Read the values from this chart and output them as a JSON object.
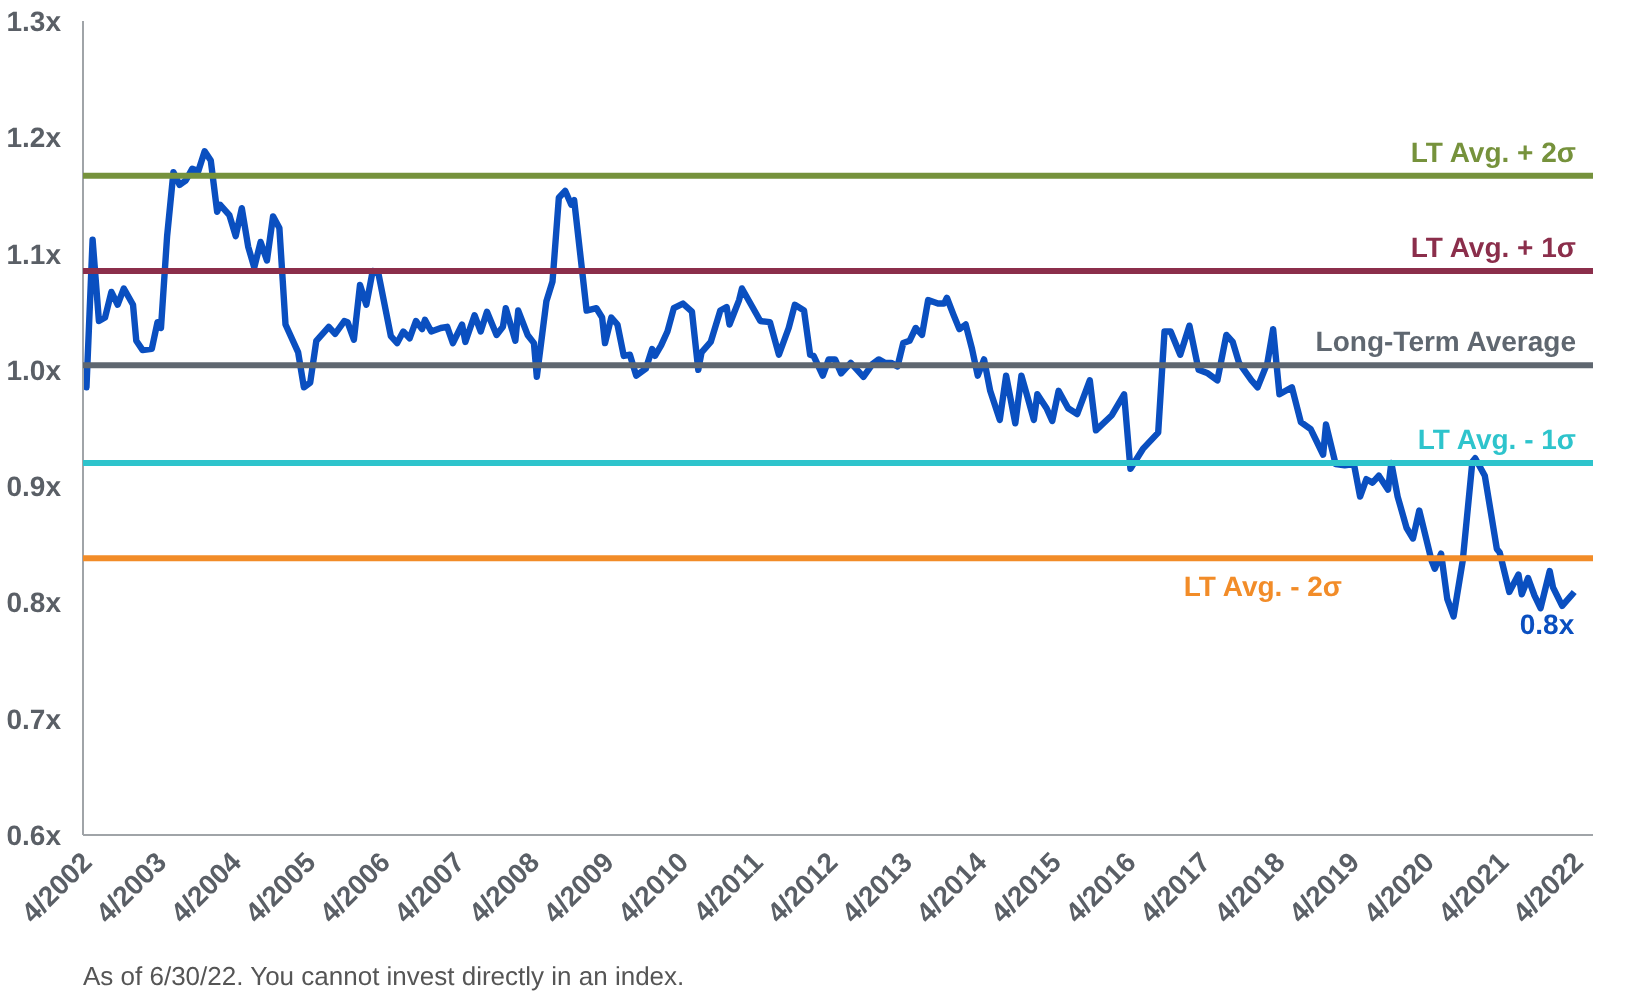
{
  "chart_data": {
    "type": "line",
    "x": [
      "2002-03-15",
      "2002-04-01",
      "2002-05-01",
      "2002-06-01",
      "2002-07-01",
      "2002-08-01",
      "2002-09-01",
      "2002-10-01",
      "2002-11-15",
      "2002-12-01",
      "2003-01-01",
      "2003-02-15",
      "2003-03-15",
      "2003-04-01",
      "2003-05-01",
      "2003-06-01",
      "2003-07-01",
      "2003-08-01",
      "2003-09-01",
      "2003-10-01",
      "2003-11-01",
      "2003-12-01",
      "2004-01-01",
      "2004-01-15",
      "2004-03-01",
      "2004-04-01",
      "2004-05-01",
      "2004-06-01",
      "2004-07-01",
      "2004-08-01",
      "2004-09-01",
      "2004-10-01",
      "2004-11-01",
      "2004-12-01",
      "2005-02-01",
      "2005-03-01",
      "2005-04-01",
      "2005-05-01",
      "2005-07-01",
      "2005-08-01",
      "2005-09-15",
      "2005-10-01",
      "2005-11-01",
      "2005-12-01",
      "2006-01-01",
      "2006-02-01",
      "2006-03-01",
      "2006-05-01",
      "2006-06-01",
      "2006-07-01",
      "2006-08-01",
      "2006-09-01",
      "2006-10-01",
      "2006-10-15",
      "2006-11-15",
      "2007-01-01",
      "2007-02-01",
      "2007-03-01",
      "2007-04-15",
      "2007-05-01",
      "2007-06-15",
      "2007-07-15",
      "2007-08-15",
      "2007-10-01",
      "2007-11-01",
      "2007-11-15",
      "2008-01-01",
      "2008-01-15",
      "2008-03-01",
      "2008-04-01",
      "2008-04-15",
      "2008-06-01",
      "2008-07-01",
      "2008-08-01",
      "2008-09-01",
      "2008-10-01",
      "2008-10-15",
      "2008-12-15",
      "2009-02-01",
      "2009-03-01",
      "2009-03-15",
      "2009-04-15",
      "2009-05-15",
      "2009-06-15",
      "2009-07-15",
      "2009-08-15",
      "2009-10-01",
      "2009-11-01",
      "2009-11-15",
      "2009-12-15",
      "2010-01-15",
      "2010-02-15",
      "2010-04-01",
      "2010-05-15",
      "2010-06-15",
      "2010-07-01",
      "2010-08-15",
      "2010-10-01",
      "2010-11-01",
      "2010-11-15",
      "2011-01-01",
      "2011-01-15",
      "2011-03-01",
      "2011-04-15",
      "2011-06-01",
      "2011-07-15",
      "2011-09-01",
      "2011-10-01",
      "2011-11-15",
      "2011-12-15",
      "2012-01-01",
      "2012-02-15",
      "2012-03-15",
      "2012-04-15",
      "2012-05-15",
      "2012-07-01",
      "2012-08-01",
      "2012-09-01",
      "2012-10-15",
      "2012-11-15",
      "2012-12-15",
      "2013-01-15",
      "2013-02-15",
      "2013-03-15",
      "2013-04-15",
      "2013-05-15",
      "2013-06-15",
      "2013-07-15",
      "2013-09-01",
      "2013-10-01",
      "2013-10-15",
      "2013-11-15",
      "2013-12-15",
      "2014-01-15",
      "2014-02-15",
      "2014-03-15",
      "2014-04-15",
      "2014-05-15",
      "2014-07-01",
      "2014-08-01",
      "2014-09-15",
      "2014-10-15",
      "2014-11-15",
      "2014-12-15",
      "2015-01-01",
      "2015-02-15",
      "2015-03-15",
      "2015-04-15",
      "2015-06-01",
      "2015-07-15",
      "2015-09-15",
      "2015-10-15",
      "2016-01-01",
      "2016-03-01",
      "2016-04-01",
      "2016-06-01",
      "2016-08-15",
      "2016-09-15",
      "2016-10-15",
      "2016-12-01",
      "2017-01-15",
      "2017-03-01",
      "2017-04-15",
      "2017-06-01",
      "2017-07-15",
      "2017-08-15",
      "2017-09-15",
      "2017-11-15",
      "2017-12-15",
      "2018-02-01",
      "2018-03-01",
      "2018-04-01",
      "2018-06-01",
      "2018-07-15",
      "2018-09-01",
      "2018-11-01",
      "2018-11-15",
      "2019-01-01",
      "2019-02-15",
      "2019-04-01",
      "2019-05-01",
      "2019-06-01",
      "2019-07-01",
      "2019-08-01",
      "2019-09-15",
      "2019-10-01",
      "2019-11-01",
      "2019-12-15",
      "2020-01-15",
      "2020-02-15",
      "2020-04-15",
      "2020-05-01",
      "2020-06-01",
      "2020-07-01",
      "2020-08-01",
      "2020-09-15",
      "2020-11-01",
      "2020-11-15",
      "2021-01-01",
      "2021-03-01",
      "2021-03-15",
      "2021-05-01",
      "2021-06-15",
      "2021-07-01",
      "2021-08-01",
      "2021-09-01",
      "2021-10-01",
      "2021-11-15",
      "2021-12-01",
      "2022-01-15",
      "2022-03-01",
      "2022-03-15"
    ],
    "series": [
      {
        "color": "#0a4fc0",
        "values": [
          1.003,
          0.985,
          1.112,
          1.042,
          1.045,
          1.067,
          1.056,
          1.07,
          1.056,
          1.025,
          1.017,
          1.018,
          1.041,
          1.036,
          1.115,
          1.17,
          1.159,
          1.163,
          1.173,
          1.171,
          1.188,
          1.18,
          1.136,
          1.142,
          1.133,
          1.115,
          1.139,
          1.106,
          1.088,
          1.11,
          1.094,
          1.132,
          1.122,
          1.039,
          1.015,
          0.985,
          0.989,
          1.025,
          1.037,
          1.031,
          1.042,
          1.041,
          1.026,
          1.073,
          1.056,
          1.085,
          1.083,
          1.029,
          1.023,
          1.033,
          1.027,
          1.042,
          1.035,
          1.043,
          1.033,
          1.036,
          1.037,
          1.023,
          1.039,
          1.024,
          1.047,
          1.033,
          1.05,
          1.03,
          1.037,
          1.053,
          1.025,
          1.051,
          1.03,
          1.023,
          0.994,
          1.059,
          1.076,
          1.148,
          1.154,
          1.142,
          1.146,
          1.051,
          1.053,
          1.045,
          1.023,
          1.045,
          1.039,
          1.012,
          1.013,
          0.995,
          1.001,
          1.018,
          1.012,
          1.021,
          1.033,
          1.053,
          1.057,
          1.05,
          1.0,
          1.015,
          1.024,
          1.051,
          1.054,
          1.039,
          1.06,
          1.07,
          1.056,
          1.042,
          1.041,
          1.013,
          1.036,
          1.056,
          1.051,
          1.013,
          1.012,
          0.995,
          1.009,
          1.009,
          0.997,
          1.006,
          1.0,
          0.994,
          1.005,
          1.009,
          1.006,
          1.006,
          1.003,
          1.023,
          1.025,
          1.036,
          1.03,
          1.06,
          1.057,
          1.057,
          1.062,
          1.048,
          1.035,
          1.039,
          1.018,
          0.995,
          1.009,
          0.982,
          0.957,
          0.995,
          0.954,
          0.995,
          0.976,
          0.957,
          0.979,
          0.967,
          0.956,
          0.982,
          0.967,
          0.962,
          0.991,
          0.948,
          0.961,
          0.979,
          0.915,
          0.932,
          0.946,
          1.033,
          1.033,
          1.013,
          1.038,
          1.0,
          0.997,
          0.991,
          1.03,
          1.024,
          1.006,
          0.991,
          0.985,
          1.006,
          1.035,
          0.979,
          0.985,
          0.955,
          0.949,
          0.927,
          0.953,
          0.919,
          0.918,
          0.919,
          0.891,
          0.906,
          0.903,
          0.909,
          0.897,
          0.92,
          0.891,
          0.864,
          0.855,
          0.879,
          0.836,
          0.829,
          0.842,
          0.803,
          0.788,
          0.836,
          0.921,
          0.924,
          0.909,
          0.846,
          0.843,
          0.809,
          0.824,
          0.807,
          0.821,
          0.806,
          0.795,
          0.827,
          0.813,
          0.797,
          0.806,
          0.809
        ]
      }
    ],
    "xlim": [
      "2002-03-15",
      "2022-06-15"
    ],
    "xticks": [
      {
        "value": "2002-04-01",
        "label": "4/2002"
      },
      {
        "value": "2003-04-01",
        "label": "4/2003"
      },
      {
        "value": "2004-04-01",
        "label": "4/2004"
      },
      {
        "value": "2005-04-01",
        "label": "4/2005"
      },
      {
        "value": "2006-04-01",
        "label": "4/2006"
      },
      {
        "value": "2007-04-01",
        "label": "4/2007"
      },
      {
        "value": "2008-04-01",
        "label": "4/2008"
      },
      {
        "value": "2009-04-01",
        "label": "4/2009"
      },
      {
        "value": "2010-04-01",
        "label": "4/2010"
      },
      {
        "value": "2011-04-01",
        "label": "4/2011"
      },
      {
        "value": "2012-04-01",
        "label": "4/2012"
      },
      {
        "value": "2013-04-01",
        "label": "4/2013"
      },
      {
        "value": "2014-04-01",
        "label": "4/2014"
      },
      {
        "value": "2015-04-01",
        "label": "4/2015"
      },
      {
        "value": "2016-04-01",
        "label": "4/2016"
      },
      {
        "value": "2017-04-01",
        "label": "4/2017"
      },
      {
        "value": "2018-04-01",
        "label": "4/2018"
      },
      {
        "value": "2019-04-01",
        "label": "4/2019"
      },
      {
        "value": "2020-04-01",
        "label": "4/2020"
      },
      {
        "value": "2021-04-01",
        "label": "4/2021"
      },
      {
        "value": "2022-04-01",
        "label": "4/2022"
      }
    ],
    "ylim": [
      0.6,
      1.3
    ],
    "yticks": [
      {
        "value": 0.6,
        "label": "0.6x"
      },
      {
        "value": 0.7,
        "label": "0.7x"
      },
      {
        "value": 0.8,
        "label": "0.8x"
      },
      {
        "value": 0.9,
        "label": "0.9x"
      },
      {
        "value": 1.0,
        "label": "1.0x"
      },
      {
        "value": 1.1,
        "label": "1.1x"
      },
      {
        "value": 1.2,
        "label": "1.2x"
      },
      {
        "value": 1.3,
        "label": "1.3x"
      }
    ],
    "grid": false,
    "line_style": "solid",
    "marker": "none",
    "ref_lines": [
      {
        "axis": "y",
        "value": 1.167,
        "label": "LT Avg. + 2σ",
        "color": "#76923c"
      },
      {
        "axis": "y",
        "value": 1.085,
        "label": "LT Avg. + 1σ",
        "color": "#8b2e4b"
      },
      {
        "axis": "y",
        "value": 1.004,
        "label": "Long-Term Average",
        "color": "#5f6770"
      },
      {
        "axis": "y",
        "value": 0.92,
        "label": "LT Avg. - 1σ",
        "color": "#2ec4cc"
      },
      {
        "axis": "y",
        "value": 0.838,
        "label": "LT Avg. - 2σ",
        "color": "#f28c28"
      }
    ],
    "annotations": [
      {
        "text": "0.8x",
        "x": "2022-03-15",
        "y": 0.809
      },
      "As of 6/30/22. You cannot invest directly in an index."
    ]
  }
}
